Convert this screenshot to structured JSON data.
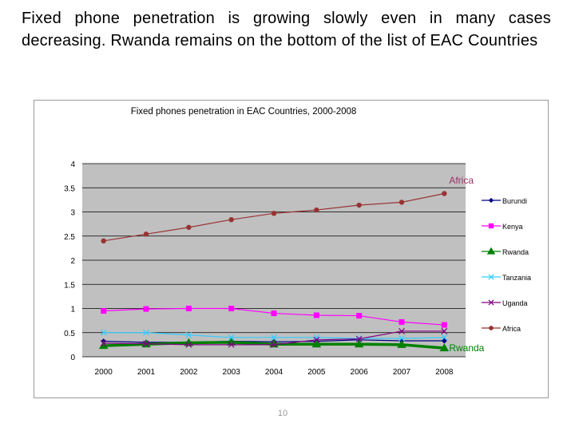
{
  "slide": {
    "title": "Fixed phone penetration is growing slowly even in many cases decreasing. Rwanda remains on the bottom of the list of EAC Countries",
    "page_number": "10"
  },
  "chart_data": {
    "type": "line",
    "title": "Fixed phones penetration in EAC Countries, 2000-2008",
    "xlabel": "",
    "ylabel": "",
    "categories": [
      "2000",
      "2001",
      "2002",
      "2003",
      "2004",
      "2005",
      "2006",
      "2007",
      "2008"
    ],
    "ylim": [
      0,
      4
    ],
    "yticks": [
      "0",
      "0.5",
      "1",
      "1.5",
      "2",
      "2.5",
      "3",
      "3.5",
      "4"
    ],
    "plot_background": "#c0c0c0",
    "legend_position": "right",
    "series": [
      {
        "name": "Burundi",
        "color": "#000080",
        "marker": "diamond",
        "values": [
          0.32,
          0.3,
          0.3,
          0.32,
          0.31,
          0.32,
          0.35,
          0.33,
          0.33
        ]
      },
      {
        "name": "Kenya",
        "color": "#ff00ff",
        "marker": "square",
        "values": [
          0.95,
          0.99,
          1.0,
          1.0,
          0.9,
          0.86,
          0.85,
          0.72,
          0.66
        ]
      },
      {
        "name": "Rwanda",
        "color": "#008000",
        "marker": "triangle",
        "values": [
          0.23,
          0.26,
          0.29,
          0.3,
          0.26,
          0.26,
          0.26,
          0.25,
          0.18
        ]
      },
      {
        "name": "Tanzania",
        "color": "#33ccff",
        "marker": "x",
        "values": [
          0.5,
          0.5,
          0.45,
          0.4,
          0.4,
          0.4,
          0.38,
          0.38,
          0.4
        ]
      },
      {
        "name": "Uganda",
        "color": "#800080",
        "marker": "x",
        "values": [
          0.28,
          0.27,
          0.25,
          0.25,
          0.25,
          0.35,
          0.37,
          0.53,
          0.53
        ]
      },
      {
        "name": "Africa",
        "color": "#993333",
        "marker": "circle",
        "values": [
          2.4,
          2.54,
          2.68,
          2.84,
          2.97,
          3.04,
          3.14,
          3.2,
          3.38
        ]
      }
    ],
    "annotations": [
      {
        "text": "Africa",
        "series": "Africa",
        "color": "#993366"
      },
      {
        "text": "Rwanda",
        "series": "Rwanda",
        "color": "#008000"
      }
    ]
  }
}
